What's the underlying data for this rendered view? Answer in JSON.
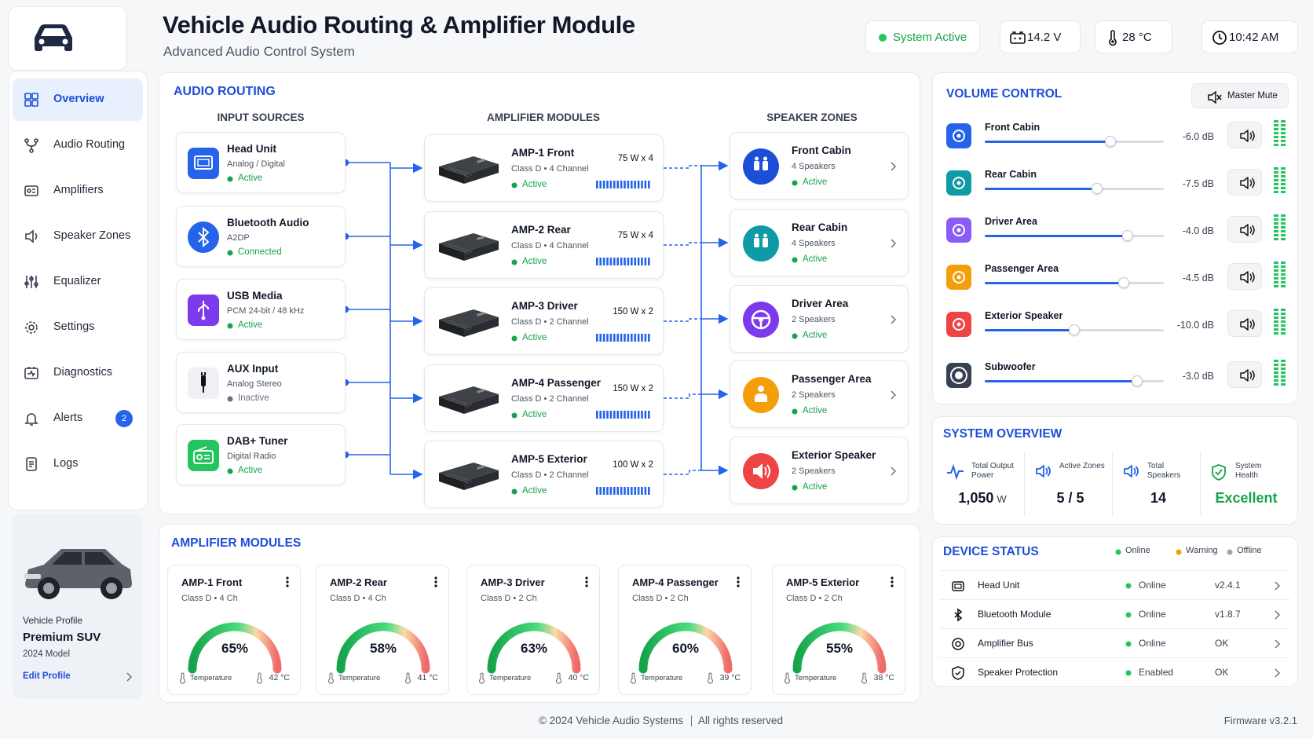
{
  "header": {
    "title": "Vehicle Audio Routing & Amplifier Module",
    "subtitle": "Advanced Audio Control System",
    "status": "System Active",
    "voltage": "14.2 V",
    "temperature": "28 °C",
    "time": "10:42 AM"
  },
  "sidebar": {
    "nav": [
      "Overview",
      "Audio Routing",
      "Amplifiers",
      "Speaker Zones",
      "Equalizer",
      "Settings",
      "Diagnostics",
      "Alerts",
      "Logs"
    ],
    "alerts_badge": "2",
    "vehicle": {
      "label": "Vehicle Profile",
      "name": "Premium SUV",
      "model": "2024 Model",
      "edit": "Edit Profile"
    }
  },
  "routing": {
    "title": "AUDIO ROUTING",
    "inputs_title": "INPUT SOURCES",
    "amps_title": "AMPLIFIER MODULES",
    "zones_title": "SPEAKER ZONES",
    "inputs": [
      {
        "name": "Head Unit",
        "detail": "Analog / Digital",
        "status": "Active"
      },
      {
        "name": "Bluetooth Audio",
        "detail": "A2DP",
        "status": "Connected"
      },
      {
        "name": "USB Media",
        "detail": "PCM 24-bit / 48 kHz",
        "status": "Active"
      },
      {
        "name": "AUX Input",
        "detail": "Analog Stereo",
        "status": "Inactive",
        "status_color": "#6b7280"
      },
      {
        "name": "DAB+ Tuner",
        "detail": "Digital Radio",
        "status": "Active"
      }
    ],
    "amps": [
      {
        "name": "AMP-1 Front",
        "detail": "Class D • 4 Channel",
        "power": "75 W x 4",
        "status": "Active"
      },
      {
        "name": "AMP-2 Rear",
        "detail": "Class D • 4 Channel",
        "power": "75 W x 4",
        "status": "Active"
      },
      {
        "name": "AMP-3 Driver",
        "detail": "Class D • 2 Channel",
        "power": "150 W x 2",
        "status": "Active"
      },
      {
        "name": "AMP-4 Passenger",
        "detail": "Class D • 2 Channel",
        "power": "150 W x 2",
        "status": "Active"
      },
      {
        "name": "AMP-5 Exterior",
        "detail": "Class D • 2 Channel",
        "power": "100 W x 2",
        "status": "Active"
      }
    ],
    "zones": [
      {
        "name": "Front Cabin",
        "detail": "4 Speakers",
        "status": "Active"
      },
      {
        "name": "Rear Cabin",
        "detail": "4 Speakers",
        "status": "Active"
      },
      {
        "name": "Driver Area",
        "detail": "2 Speakers",
        "status": "Active"
      },
      {
        "name": "Passenger Area",
        "detail": "2 Speakers",
        "status": "Active"
      },
      {
        "name": "Exterior Speaker",
        "detail": "2 Speakers",
        "status": "Active"
      }
    ]
  },
  "volume": {
    "title": "VOLUME CONTROL",
    "mute": "Master Mute",
    "channels": [
      {
        "name": "Front Cabin",
        "level": "-6.0 dB"
      },
      {
        "name": "Rear Cabin",
        "level": "-7.5 dB"
      },
      {
        "name": "Driver Area",
        "level": "-4.0 dB"
      },
      {
        "name": "Passenger Area",
        "level": "-4.5 dB"
      },
      {
        "name": "Exterior Speaker",
        "level": "-10.0 dB"
      },
      {
        "name": "Subwoofer",
        "level": "-3.0 dB"
      }
    ]
  },
  "overview": {
    "title": "SYSTEM OVERVIEW",
    "stats": [
      {
        "label": "Total Output Power",
        "value": "1,050",
        "unit": "W"
      },
      {
        "label": "Active Zones",
        "value": "5 / 5"
      },
      {
        "label": "Total Speakers",
        "value": "14"
      },
      {
        "label": "System Health",
        "value": "Excellent",
        "color": "#16a34a"
      }
    ]
  },
  "device_status": {
    "title": "DEVICE STATUS",
    "legend": [
      {
        "label": "Online",
        "color": "#22c55e"
      },
      {
        "label": "Warning",
        "color": "#f59e0b"
      },
      {
        "label": "Offline",
        "color": "#9ca3af"
      }
    ],
    "devices": [
      {
        "name": "Head Unit",
        "status": "Online",
        "version": "v2.4.1"
      },
      {
        "name": "Bluetooth Module",
        "status": "Online",
        "version": "v1.8.7"
      },
      {
        "name": "Amplifier Bus",
        "status": "Online",
        "version": "OK"
      },
      {
        "name": "Speaker Protection",
        "status": "Enabled",
        "version": "OK"
      }
    ]
  },
  "amplifiers": {
    "title": "AMPLIFIER MODULES",
    "cards": [
      {
        "name": "AMP-1 Front",
        "detail": "Class D • 4 Ch",
        "load": "65%",
        "temp_label": "Temperature",
        "temp": "42 °C"
      },
      {
        "name": "AMP-2 Rear",
        "detail": "Class D • 4 Ch",
        "load": "58%",
        "temp_label": "Temperature",
        "temp": "41 °C"
      },
      {
        "name": "AMP-3 Driver",
        "detail": "Class D • 2 Ch",
        "load": "63%",
        "temp_label": "Temperature",
        "temp": "40 °C"
      },
      {
        "name": "AMP-4 Passenger",
        "detail": "Class D • 2 Ch",
        "load": "60%",
        "temp_label": "Temperature",
        "temp": "39 °C"
      },
      {
        "name": "AMP-5 Exterior",
        "detail": "Class D • 2 Ch",
        "load": "55%",
        "temp_label": "Temperature",
        "temp": "38 °C"
      }
    ]
  },
  "footer": {
    "copyright": "© 2024 Vehicle Audio Systems",
    "rights": "All rights reserved",
    "firmware": "Firmware v3.2.1"
  }
}
